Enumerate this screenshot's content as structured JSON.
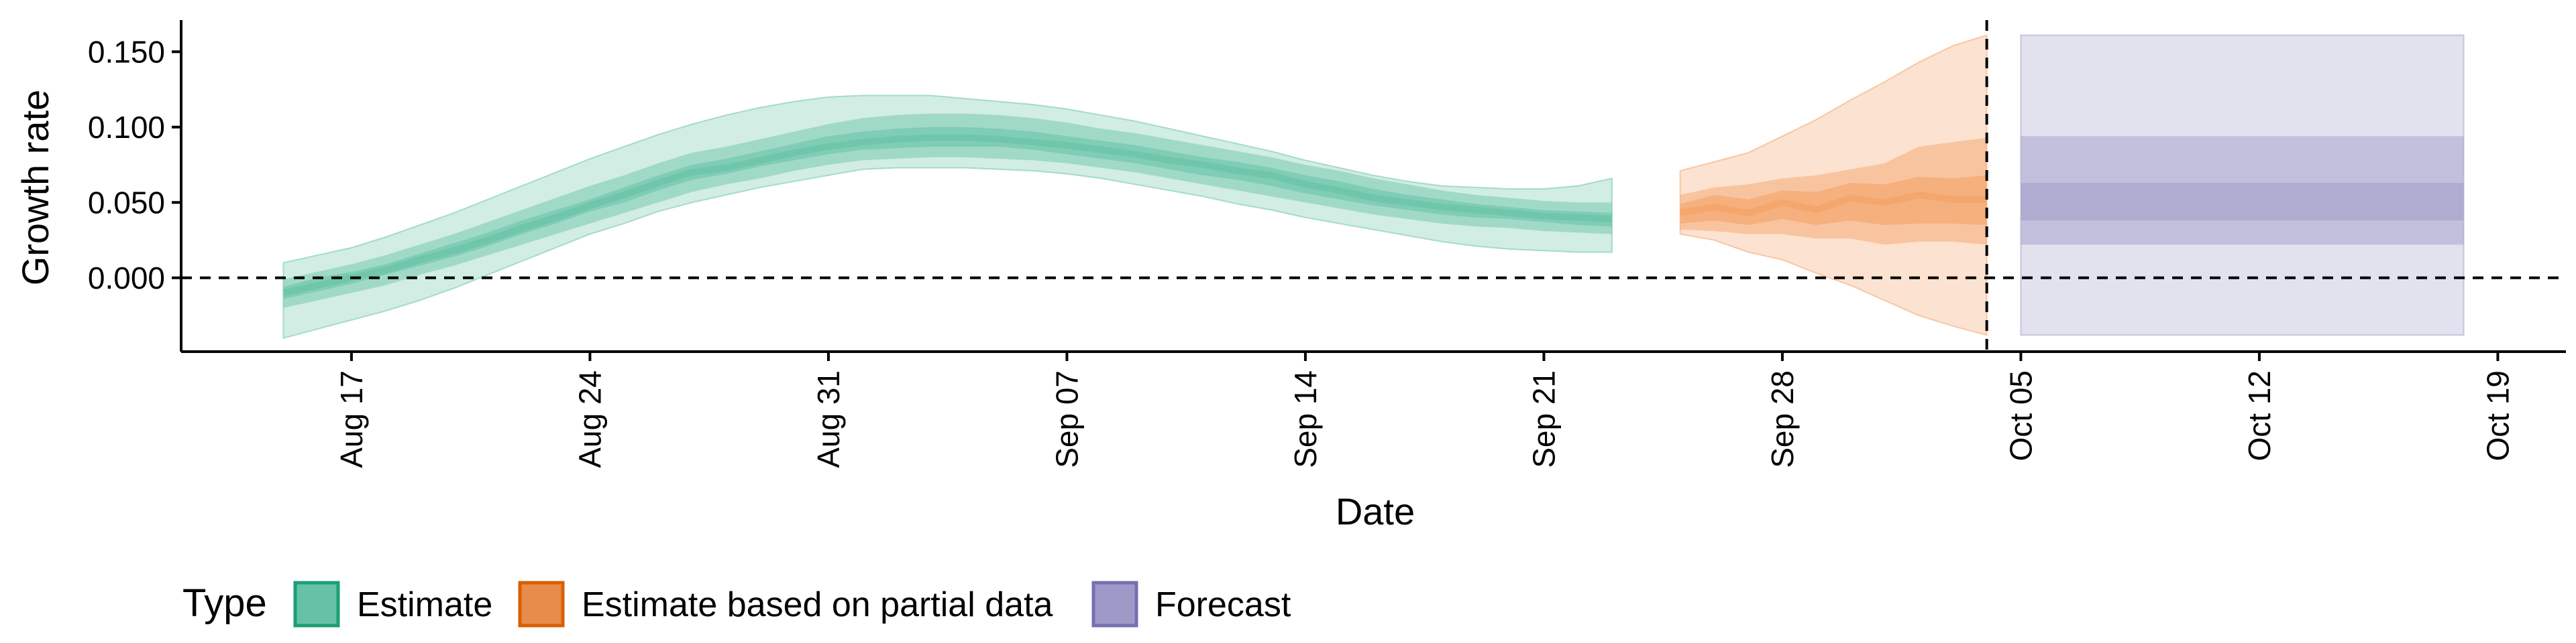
{
  "chart_data": {
    "type": "area",
    "xlabel": "Date",
    "ylabel": "Growth rate",
    "x_tick_labels": [
      "Aug 17",
      "Aug 24",
      "Aug 31",
      "Sep 07",
      "Sep 14",
      "Sep 21",
      "Sep 28",
      "Oct 05",
      "Oct 12",
      "Oct 19"
    ],
    "x_tick_dates": [
      "2020-08-17",
      "2020-08-24",
      "2020-08-31",
      "2020-09-07",
      "2020-09-14",
      "2020-09-21",
      "2020-09-28",
      "2020-10-05",
      "2020-10-12",
      "2020-10-19"
    ],
    "xlim": [
      "2020-08-12",
      "2020-10-21"
    ],
    "y_tick_labels": [
      "0.000",
      "0.050",
      "0.100",
      "0.150"
    ],
    "y_ticks": [
      0,
      0.05,
      0.1,
      0.15
    ],
    "ylim": [
      -0.049,
      0.171
    ],
    "hline_y": 0,
    "vline_date": "2020-10-04",
    "grid": false,
    "legend": {
      "title": "Type",
      "position": "bottom-left",
      "entries": [
        {
          "label": "Estimate",
          "color": "#66c2a5",
          "border": "#1b9e77"
        },
        {
          "label": "Estimate based on partial data",
          "color": "#e78c4a",
          "border": "#d95f02"
        },
        {
          "label": "Forecast",
          "color": "#9e9ac8",
          "border": "#7570b3"
        }
      ]
    },
    "series": [
      {
        "name": "Estimate",
        "color": "#1b9e77",
        "x": [
          "2020-08-15",
          "2020-08-16",
          "2020-08-17",
          "2020-08-18",
          "2020-08-19",
          "2020-08-20",
          "2020-08-21",
          "2020-08-22",
          "2020-08-23",
          "2020-08-24",
          "2020-08-25",
          "2020-08-26",
          "2020-08-27",
          "2020-08-28",
          "2020-08-29",
          "2020-08-30",
          "2020-08-31",
          "2020-09-01",
          "2020-09-02",
          "2020-09-03",
          "2020-09-04",
          "2020-09-05",
          "2020-09-06",
          "2020-09-07",
          "2020-09-08",
          "2020-09-09",
          "2020-09-10",
          "2020-09-11",
          "2020-09-12",
          "2020-09-13",
          "2020-09-14",
          "2020-09-15",
          "2020-09-16",
          "2020-09-17",
          "2020-09-18",
          "2020-09-19",
          "2020-09-20",
          "2020-09-21",
          "2020-09-22",
          "2020-09-23"
        ],
        "median": [
          -0.01,
          -0.005,
          0.0,
          0.005,
          0.012,
          0.018,
          0.025,
          0.033,
          0.04,
          0.048,
          0.055,
          0.063,
          0.07,
          0.073,
          0.078,
          0.083,
          0.087,
          0.09,
          0.092,
          0.093,
          0.093,
          0.092,
          0.09,
          0.088,
          0.085,
          0.082,
          0.078,
          0.075,
          0.071,
          0.068,
          0.062,
          0.058,
          0.053,
          0.05,
          0.047,
          0.045,
          0.043,
          0.041,
          0.04,
          0.039
        ],
        "lower50": [
          -0.014,
          -0.009,
          -0.004,
          0.002,
          0.008,
          0.014,
          0.021,
          0.029,
          0.036,
          0.044,
          0.05,
          0.058,
          0.065,
          0.069,
          0.074,
          0.078,
          0.082,
          0.085,
          0.086,
          0.087,
          0.087,
          0.087,
          0.085,
          0.082,
          0.079,
          0.076,
          0.072,
          0.068,
          0.065,
          0.061,
          0.056,
          0.052,
          0.048,
          0.045,
          0.042,
          0.04,
          0.039,
          0.037,
          0.035,
          0.034
        ],
        "upper50": [
          -0.006,
          0.0,
          0.004,
          0.009,
          0.016,
          0.023,
          0.03,
          0.038,
          0.045,
          0.052,
          0.06,
          0.068,
          0.075,
          0.079,
          0.084,
          0.089,
          0.094,
          0.097,
          0.099,
          0.1,
          0.1,
          0.099,
          0.097,
          0.094,
          0.091,
          0.088,
          0.084,
          0.08,
          0.077,
          0.073,
          0.068,
          0.064,
          0.059,
          0.055,
          0.052,
          0.049,
          0.047,
          0.045,
          0.044,
          0.043
        ],
        "lower90": [
          -0.02,
          -0.015,
          -0.01,
          -0.005,
          0.002,
          0.008,
          0.015,
          0.022,
          0.029,
          0.036,
          0.043,
          0.05,
          0.057,
          0.062,
          0.066,
          0.071,
          0.075,
          0.078,
          0.079,
          0.08,
          0.08,
          0.079,
          0.078,
          0.076,
          0.073,
          0.07,
          0.066,
          0.062,
          0.058,
          0.054,
          0.05,
          0.046,
          0.042,
          0.039,
          0.036,
          0.034,
          0.033,
          0.031,
          0.03,
          0.029
        ],
        "upper90": [
          -0.001,
          0.004,
          0.009,
          0.015,
          0.022,
          0.029,
          0.037,
          0.045,
          0.053,
          0.061,
          0.068,
          0.076,
          0.083,
          0.087,
          0.092,
          0.097,
          0.102,
          0.106,
          0.108,
          0.109,
          0.109,
          0.108,
          0.106,
          0.103,
          0.099,
          0.096,
          0.092,
          0.088,
          0.084,
          0.08,
          0.075,
          0.071,
          0.066,
          0.062,
          0.058,
          0.055,
          0.053,
          0.051,
          0.05,
          0.05
        ],
        "lower_outer": [
          -0.04,
          -0.034,
          -0.028,
          -0.022,
          -0.015,
          -0.007,
          0.002,
          0.011,
          0.02,
          0.029,
          0.036,
          0.044,
          0.05,
          0.055,
          0.06,
          0.064,
          0.068,
          0.072,
          0.073,
          0.073,
          0.073,
          0.072,
          0.071,
          0.069,
          0.066,
          0.062,
          0.058,
          0.054,
          0.049,
          0.045,
          0.04,
          0.036,
          0.032,
          0.028,
          0.024,
          0.021,
          0.019,
          0.018,
          0.017,
          0.017
        ],
        "upper_outer": [
          0.01,
          0.015,
          0.02,
          0.027,
          0.035,
          0.043,
          0.052,
          0.061,
          0.07,
          0.079,
          0.087,
          0.095,
          0.102,
          0.108,
          0.113,
          0.117,
          0.12,
          0.121,
          0.121,
          0.121,
          0.119,
          0.117,
          0.115,
          0.112,
          0.108,
          0.104,
          0.099,
          0.094,
          0.089,
          0.084,
          0.078,
          0.073,
          0.068,
          0.064,
          0.061,
          0.06,
          0.059,
          0.059,
          0.061,
          0.066
        ]
      },
      {
        "name": "Estimate based on partial data",
        "color": "#d95f02",
        "x": [
          "2020-09-25",
          "2020-09-26",
          "2020-09-27",
          "2020-09-28",
          "2020-09-29",
          "2020-09-30",
          "2020-10-01",
          "2020-10-02",
          "2020-10-03",
          "2020-10-04"
        ],
        "median": [
          0.043,
          0.047,
          0.043,
          0.05,
          0.045,
          0.053,
          0.05,
          0.055,
          0.052,
          0.052
        ],
        "lower50": [
          0.036,
          0.038,
          0.035,
          0.039,
          0.035,
          0.038,
          0.035,
          0.036,
          0.036,
          0.035
        ],
        "upper50": [
          0.049,
          0.055,
          0.052,
          0.058,
          0.057,
          0.063,
          0.062,
          0.067,
          0.066,
          0.068
        ],
        "lower90": [
          0.032,
          0.031,
          0.029,
          0.029,
          0.026,
          0.026,
          0.022,
          0.024,
          0.024,
          0.022
        ],
        "upper90": [
          0.055,
          0.06,
          0.062,
          0.066,
          0.068,
          0.072,
          0.076,
          0.087,
          0.09,
          0.093
        ],
        "lower_outer": [
          0.029,
          0.025,
          0.017,
          0.012,
          0.003,
          -0.005,
          -0.015,
          -0.025,
          -0.032,
          -0.038
        ],
        "upper_outer": [
          0.071,
          0.077,
          0.083,
          0.094,
          0.105,
          0.118,
          0.13,
          0.143,
          0.154,
          0.161
        ]
      },
      {
        "name": "Forecast",
        "color": "#7570b3",
        "x": [
          "2020-10-05",
          "2020-10-18"
        ],
        "lower50": [
          0.038,
          0.038
        ],
        "upper50": [
          0.063,
          0.063
        ],
        "lower90": [
          0.022,
          0.022
        ],
        "upper90": [
          0.094,
          0.094
        ],
        "lower_outer": [
          -0.038,
          -0.038
        ],
        "upper_outer": [
          0.161,
          0.161
        ]
      }
    ]
  }
}
